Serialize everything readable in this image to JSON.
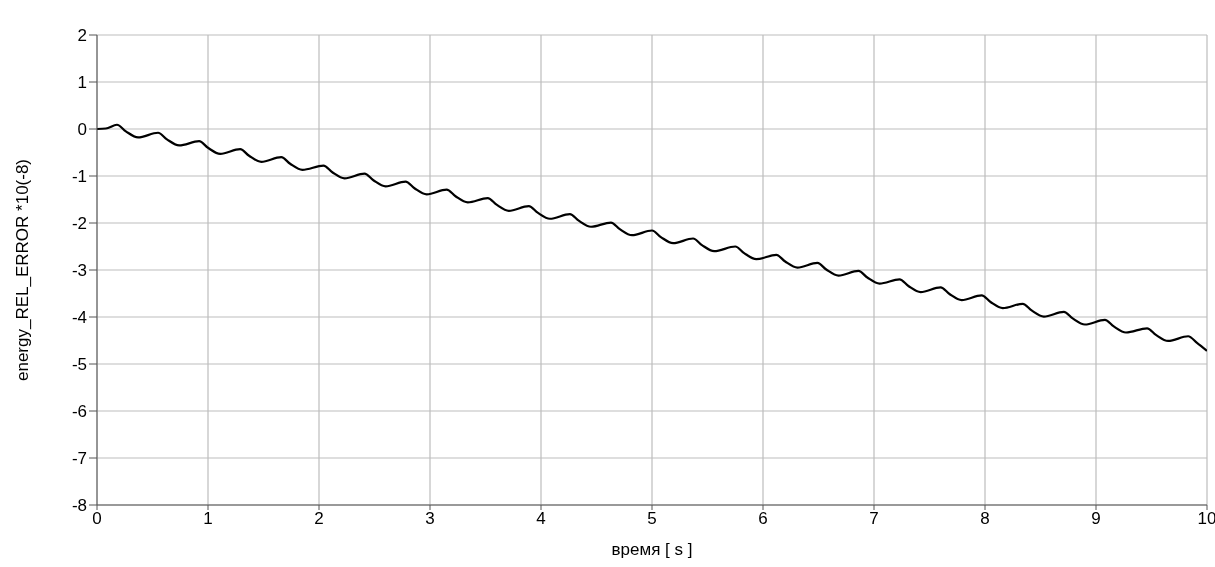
{
  "chart_data": {
    "type": "line",
    "xlabel": "время   [ s ]",
    "ylabel": "energy_REL_ERROR  *10(-8)",
    "x": [
      0,
      0.08,
      0.18,
      0.26,
      0.37,
      0.55,
      0.63,
      0.74,
      0.92,
      1.0,
      1.11,
      1.29,
      1.37,
      1.48,
      1.66,
      1.74,
      1.85,
      2.04,
      2.12,
      2.23,
      2.41,
      2.49,
      2.6,
      2.78,
      2.86,
      2.97,
      3.15,
      3.23,
      3.34,
      3.52,
      3.6,
      3.71,
      3.89,
      3.97,
      4.08,
      4.26,
      4.34,
      4.45,
      4.63,
      4.71,
      4.82,
      5.0,
      5.08,
      5.19,
      5.37,
      5.45,
      5.56,
      5.75,
      5.83,
      5.94,
      6.12,
      6.2,
      6.31,
      6.49,
      6.57,
      6.68,
      6.86,
      6.94,
      7.05,
      7.23,
      7.31,
      7.42,
      7.6,
      7.68,
      7.79,
      7.97,
      8.05,
      8.16,
      8.34,
      8.42,
      8.53,
      8.71,
      8.79,
      8.9,
      9.08,
      9.16,
      9.27,
      9.46,
      9.54,
      9.65,
      9.83,
      9.91,
      10
    ],
    "series": [
      {
        "color": "#000000",
        "values": [
          0,
          0.01,
          0.09,
          -0.05,
          -0.18,
          -0.08,
          -0.22,
          -0.35,
          -0.26,
          -0.4,
          -0.53,
          -0.43,
          -0.57,
          -0.7,
          -0.6,
          -0.74,
          -0.87,
          -0.78,
          -0.92,
          -1.05,
          -0.95,
          -1.09,
          -1.22,
          -1.12,
          -1.26,
          -1.39,
          -1.29,
          -1.43,
          -1.56,
          -1.47,
          -1.61,
          -1.74,
          -1.64,
          -1.78,
          -1.91,
          -1.81,
          -1.95,
          -2.08,
          -1.99,
          -2.13,
          -2.26,
          -2.16,
          -2.3,
          -2.43,
          -2.33,
          -2.47,
          -2.6,
          -2.5,
          -2.64,
          -2.77,
          -2.68,
          -2.82,
          -2.95,
          -2.85,
          -2.99,
          -3.12,
          -3.02,
          -3.16,
          -3.29,
          -3.2,
          -3.34,
          -3.47,
          -3.37,
          -3.51,
          -3.64,
          -3.54,
          -3.68,
          -3.81,
          -3.72,
          -3.86,
          -3.99,
          -3.89,
          -4.03,
          -4.16,
          -4.06,
          -4.2,
          -4.33,
          -4.24,
          -4.38,
          -4.51,
          -4.41,
          -4.55,
          -4.72
        ]
      }
    ],
    "xlim": [
      0,
      10
    ],
    "ylim": [
      -8,
      2
    ],
    "xticks": [
      0,
      1,
      2,
      3,
      4,
      5,
      6,
      7,
      8,
      9,
      10
    ],
    "yticks": [
      -8,
      -7,
      -6,
      -5,
      -4,
      -3,
      -2,
      -1,
      0,
      1,
      2
    ],
    "grid": true
  }
}
